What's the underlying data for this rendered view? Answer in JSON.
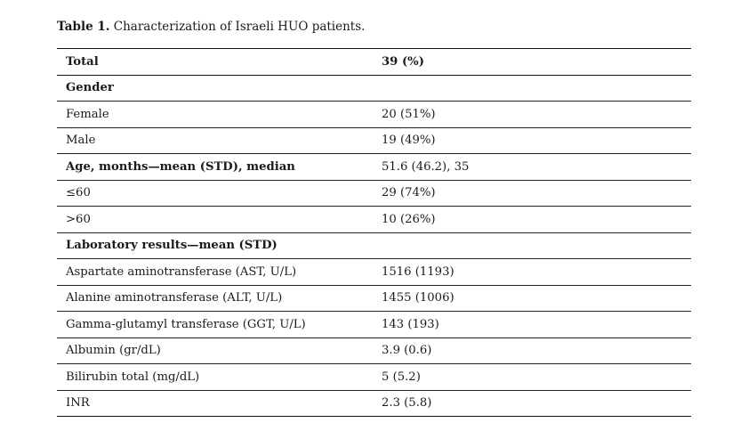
{
  "caption": {
    "label": "Table 1.",
    "text": "Characterization of Israeli HUO patients."
  },
  "rows": [
    {
      "label": "Total",
      "value": "39 (%)",
      "bold": true,
      "bold_value": true
    },
    {
      "label": "Gender",
      "value": "",
      "bold": true
    },
    {
      "label": "Female",
      "value": "20 (51%)"
    },
    {
      "label": "Male",
      "value": "19 (49%)"
    },
    {
      "label": "Age, months—mean (STD), median",
      "value": "51.6 (46.2), 35",
      "bold": true
    },
    {
      "label": "≤60",
      "value": "29 (74%)"
    },
    {
      "label": ">60",
      "value": "10 (26%)"
    },
    {
      "label": "Laboratory results—mean (STD)",
      "value": "",
      "bold": true
    },
    {
      "label": "Aspartate aminotransferase (AST, U/L)",
      "value": "1516 (1193)"
    },
    {
      "label": "Alanine aminotransferase (ALT, U/L)",
      "value": "1455 (1006)"
    },
    {
      "label": "Gamma-glutamyl transferase (GGT, U/L)",
      "value": "143 (193)"
    },
    {
      "label": "Albumin (gr/dL)",
      "value": "3.9 (0.6)"
    },
    {
      "label": "Bilirubin total (mg/dL)",
      "value": "5 (5.2)"
    },
    {
      "label": "INR",
      "value": "2.3 (5.8)"
    }
  ]
}
